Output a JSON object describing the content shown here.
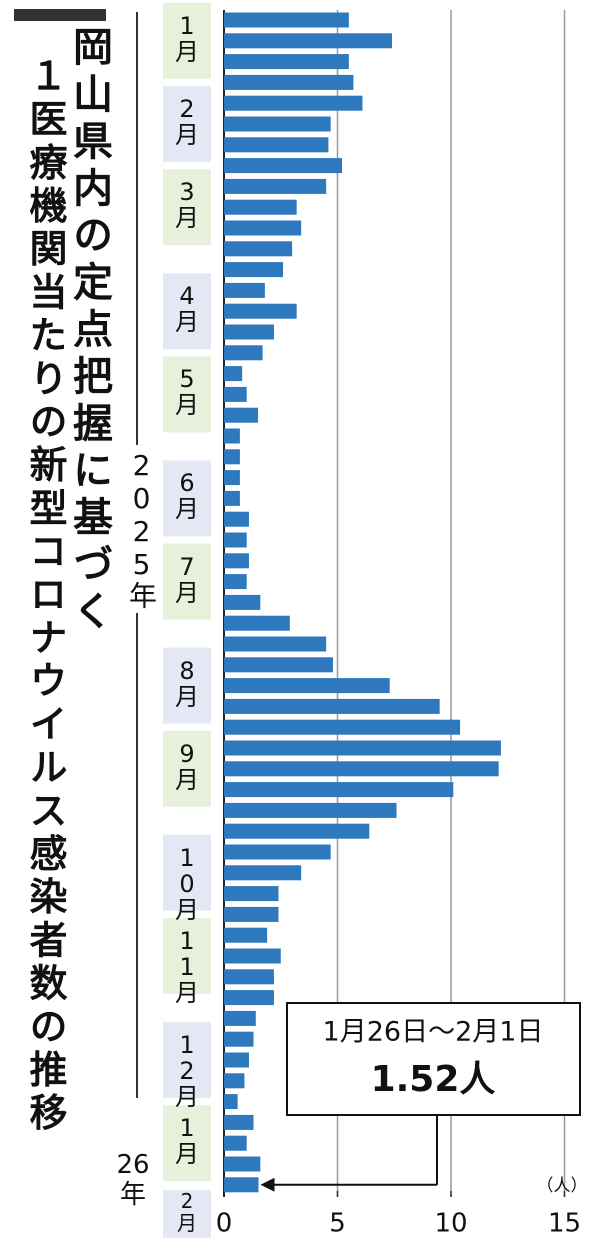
{
  "chart_data": {
    "type": "barh",
    "title_lines": [
      "岡山県内の定点把握に基づく",
      "１医療機関当たりの新型コロナウイルス感染者数の推移"
    ],
    "categories": [
      null,
      "1月",
      null,
      null,
      null,
      "2月",
      null,
      null,
      null,
      "3月",
      null,
      null,
      null,
      null,
      "4月",
      null,
      null,
      null,
      "5月",
      null,
      null,
      null,
      null,
      "6月",
      null,
      null,
      null,
      "7月",
      null,
      null,
      null,
      null,
      "8月",
      null,
      null,
      null,
      "9月",
      null,
      null,
      null,
      null,
      "10月",
      null,
      null,
      null,
      "11月",
      null,
      null,
      null,
      null,
      "12月",
      null,
      null,
      null,
      "1月",
      null,
      null
    ],
    "axis_end_label": "2月",
    "year_labels": [
      "2025年",
      "26年"
    ],
    "values": [
      5.5,
      7.4,
      5.5,
      5.7,
      6.1,
      4.7,
      4.6,
      5.2,
      4.5,
      3.2,
      3.4,
      3.0,
      2.6,
      1.8,
      3.2,
      2.2,
      1.7,
      0.8,
      1.0,
      1.5,
      0.7,
      0.7,
      0.7,
      0.7,
      1.1,
      1.0,
      1.1,
      1.0,
      1.6,
      2.9,
      4.5,
      4.8,
      7.3,
      9.5,
      10.4,
      12.2,
      12.1,
      10.1,
      7.6,
      6.4,
      4.7,
      3.4,
      2.4,
      2.4,
      1.9,
      2.5,
      2.2,
      2.2,
      1.4,
      1.3,
      1.1,
      0.9,
      0.6,
      1.3,
      1.0,
      1.6,
      1.52
    ],
    "color": "#2e78bd",
    "xlim": [
      0,
      16.8
    ],
    "xticks": [
      0,
      5,
      10,
      15
    ],
    "grid": true,
    "unit_label": "（人）",
    "annotation": {
      "period": "1月26日～2月1日",
      "value_text": "1.52人"
    }
  }
}
